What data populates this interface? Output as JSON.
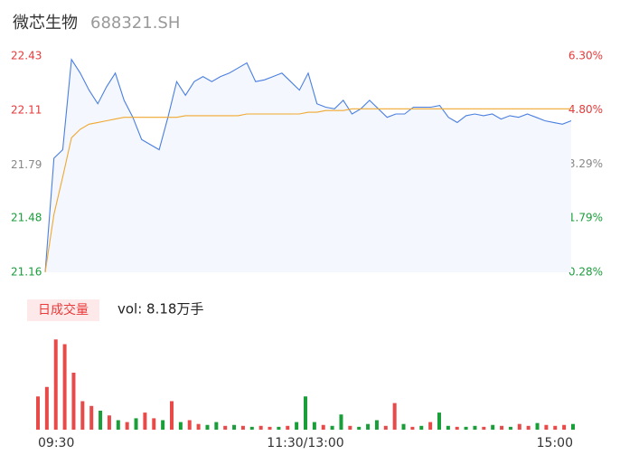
{
  "chart_data": [
    {
      "type": "line",
      "title": "微芯生物",
      "subtitle": "688321.SH",
      "x": [
        0,
        4,
        8,
        12,
        16,
        20,
        24,
        28,
        32,
        36,
        40,
        44,
        48,
        52,
        56,
        60,
        64,
        68,
        72,
        76,
        80,
        84,
        88,
        92,
        96,
        100,
        104,
        108,
        112,
        116,
        120,
        124,
        128,
        132,
        136,
        140,
        144,
        148,
        152,
        156,
        160,
        164,
        168,
        172,
        176,
        180,
        184,
        188,
        192,
        196,
        200,
        204,
        208,
        212,
        216,
        220,
        224,
        228,
        232,
        236,
        240
      ],
      "xlim": [
        0,
        240
      ],
      "ylim": [
        21.16,
        22.43
      ],
      "yticks": [
        22.43,
        22.11,
        21.79,
        21.48,
        21.16
      ],
      "ytick_colors": [
        "#e83a3a",
        "#e83a3a",
        "#888888",
        "#1a9e3a",
        "#1a9e3a"
      ],
      "y2lim": [
        0.28,
        6.3
      ],
      "y2ticks": [
        {
          "value": 6.3,
          "label": "6.30%"
        },
        {
          "value": 4.8,
          "label": "4.80%"
        },
        {
          "value": 3.29,
          "label": "3.29%"
        },
        {
          "value": 1.79,
          "label": "1.79%"
        },
        {
          "value": 0.28,
          "label": "0.28%"
        }
      ],
      "y2tick_colors": [
        "#e83a3a",
        "#e83a3a",
        "#888888",
        "#1a9e3a",
        "#1a9e3a"
      ],
      "area_color": "#f4f7fd",
      "series": [
        {
          "name": "price",
          "color": "#4a7fe0",
          "values": [
            21.16,
            21.83,
            21.88,
            22.41,
            22.33,
            22.23,
            22.15,
            22.25,
            22.33,
            22.17,
            22.07,
            21.94,
            21.91,
            21.88,
            22.07,
            22.28,
            22.2,
            22.28,
            22.31,
            22.28,
            22.31,
            22.33,
            22.36,
            22.39,
            22.28,
            22.29,
            22.31,
            22.33,
            22.28,
            22.23,
            22.33,
            22.15,
            22.13,
            22.12,
            22.17,
            22.09,
            22.12,
            22.17,
            22.12,
            22.07,
            22.09,
            22.09,
            22.13,
            22.13,
            22.13,
            22.14,
            22.07,
            22.04,
            22.08,
            22.09,
            22.08,
            22.09,
            22.06,
            22.08,
            22.07,
            22.09,
            22.07,
            22.05,
            22.04,
            22.03,
            22.05
          ]
        },
        {
          "name": "average",
          "color": "#f0a830",
          "values": [
            21.16,
            21.5,
            21.72,
            21.95,
            22.0,
            22.03,
            22.04,
            22.05,
            22.06,
            22.07,
            22.07,
            22.07,
            22.07,
            22.07,
            22.07,
            22.07,
            22.08,
            22.08,
            22.08,
            22.08,
            22.08,
            22.08,
            22.08,
            22.09,
            22.09,
            22.09,
            22.09,
            22.09,
            22.09,
            22.09,
            22.1,
            22.1,
            22.11,
            22.11,
            22.11,
            22.12,
            22.12,
            22.12,
            22.12,
            22.12,
            22.12,
            22.12,
            22.12,
            22.12,
            22.12,
            22.12,
            22.12,
            22.12,
            22.12,
            22.12,
            22.12,
            22.12,
            22.12,
            22.12,
            22.12,
            22.12,
            22.12,
            22.12,
            22.12,
            22.12,
            22.12
          ]
        }
      ]
    },
    {
      "type": "bar",
      "label": "日成交量",
      "summary": "vol: 8.18万手",
      "x": [
        0,
        4,
        8,
        12,
        16,
        20,
        24,
        28,
        32,
        36,
        40,
        44,
        48,
        52,
        56,
        60,
        64,
        68,
        72,
        76,
        80,
        84,
        88,
        92,
        96,
        100,
        104,
        108,
        112,
        116,
        120,
        124,
        128,
        132,
        136,
        140,
        144,
        148,
        152,
        156,
        160,
        164,
        168,
        172,
        176,
        180,
        184,
        188,
        192,
        196,
        200,
        204,
        208,
        212,
        216,
        220,
        224,
        228,
        232,
        236,
        240
      ],
      "xlim": [
        0,
        240
      ],
      "xticks": [
        {
          "value": 0,
          "label": "09:30"
        },
        {
          "value": 120,
          "label": "11:30/13:00"
        },
        {
          "value": 240,
          "label": "15:00"
        }
      ],
      "ylim": [
        0,
        100
      ],
      "values": [
        35,
        45,
        95,
        90,
        60,
        30,
        25,
        20,
        15,
        10,
        8,
        12,
        18,
        12,
        10,
        30,
        8,
        10,
        6,
        5,
        8,
        4,
        5,
        4,
        3,
        4,
        3,
        3,
        4,
        8,
        35,
        8,
        5,
        4,
        16,
        4,
        3,
        6,
        10,
        4,
        28,
        6,
        3,
        4,
        8,
        18,
        4,
        3,
        3,
        4,
        3,
        5,
        4,
        3,
        6,
        4,
        7,
        5,
        4,
        5,
        6
      ],
      "colors": [
        "#e84a4a",
        "#e84a4a",
        "#e84a4a",
        "#e84a4a",
        "#e84a4a",
        "#e84a4a",
        "#e84a4a",
        "#1a9e3a",
        "#e84a4a",
        "#1a9e3a",
        "#e84a4a",
        "#1a9e3a",
        "#e84a4a",
        "#e84a4a",
        "#1a9e3a",
        "#e84a4a",
        "#1a9e3a",
        "#e84a4a",
        "#e84a4a",
        "#1a9e3a",
        "#1a9e3a",
        "#e84a4a",
        "#1a9e3a",
        "#e84a4a",
        "#1a9e3a",
        "#e84a4a",
        "#e84a4a",
        "#1a9e3a",
        "#e84a4a",
        "#1a9e3a",
        "#1a9e3a",
        "#1a9e3a",
        "#e84a4a",
        "#1a9e3a",
        "#1a9e3a",
        "#e84a4a",
        "#1a9e3a",
        "#1a9e3a",
        "#1a9e3a",
        "#e84a4a",
        "#e84a4a",
        "#1a9e3a",
        "#e84a4a",
        "#1a9e3a",
        "#e84a4a",
        "#1a9e3a",
        "#1a9e3a",
        "#e84a4a",
        "#1a9e3a",
        "#1a9e3a",
        "#e84a4a",
        "#1a9e3a",
        "#e84a4a",
        "#1a9e3a",
        "#e84a4a",
        "#e84a4a",
        "#1a9e3a",
        "#e84a4a",
        "#e84a4a",
        "#e84a4a",
        "#1a9e3a"
      ]
    }
  ]
}
